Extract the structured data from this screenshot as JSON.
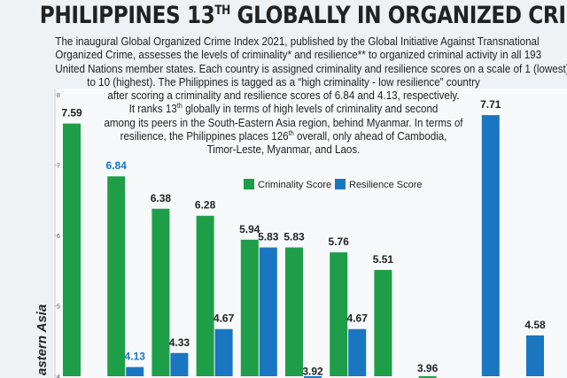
{
  "chart_data": {
    "type": "bar",
    "title": [
      "PHILIPPINES 13",
      "TH",
      " GLOBALLY IN ORGANIZED CRIME LIST"
    ],
    "description": [
      "The inaugural Global Organized Crime Index 2021, published by the Global Initiative Against Transnational",
      "Organized Crime, assesses the levels of criminality* and resilience** to organized criminal activity in all 193",
      "United Nations member states. Each country is assigned criminality and resilience scores on a scale of 1 (lowest)",
      "to 10 (highest). The Philippines is tagged as a “high criminality - low resilience” country",
      "after scoring a criminality and resilience scores of 6.84 and 4.13, respectively."
    ],
    "rank_text": [
      [
        "It ranks 13",
        "th",
        " globally in terms of high levels of criminality and second"
      ],
      [
        "among its peers in the South-Eastern Asia region, behind Myanmar. In terms of"
      ],
      [
        "resilience, the Philippines places 126",
        "th",
        " overall, only ahead of Cambodia,"
      ],
      [
        "Timor-Leste, Myanmar, and Laos."
      ]
    ],
    "axis_label": "astern Asia",
    "categories": [
      null,
      null,
      null,
      null,
      null,
      null,
      null,
      null,
      null,
      null,
      null
    ],
    "series": [
      {
        "name": "Criminality Score",
        "color": "#1e9e48",
        "values": [
          7.59,
          6.84,
          6.38,
          6.28,
          5.94,
          5.83,
          5.76,
          5.51,
          3.96,
          null,
          null
        ]
      },
      {
        "name": "Resilience Score",
        "color": "#1a76c0",
        "values": [
          null,
          4.13,
          4.33,
          4.67,
          5.83,
          3.92,
          4.67,
          null,
          null,
          7.71,
          4.58
        ]
      }
    ],
    "highlight_color": "#1a76c0",
    "highlight_index": 1,
    "ylim": [
      4,
      8
    ],
    "yticks": [
      4,
      5,
      6,
      7,
      8
    ]
  }
}
